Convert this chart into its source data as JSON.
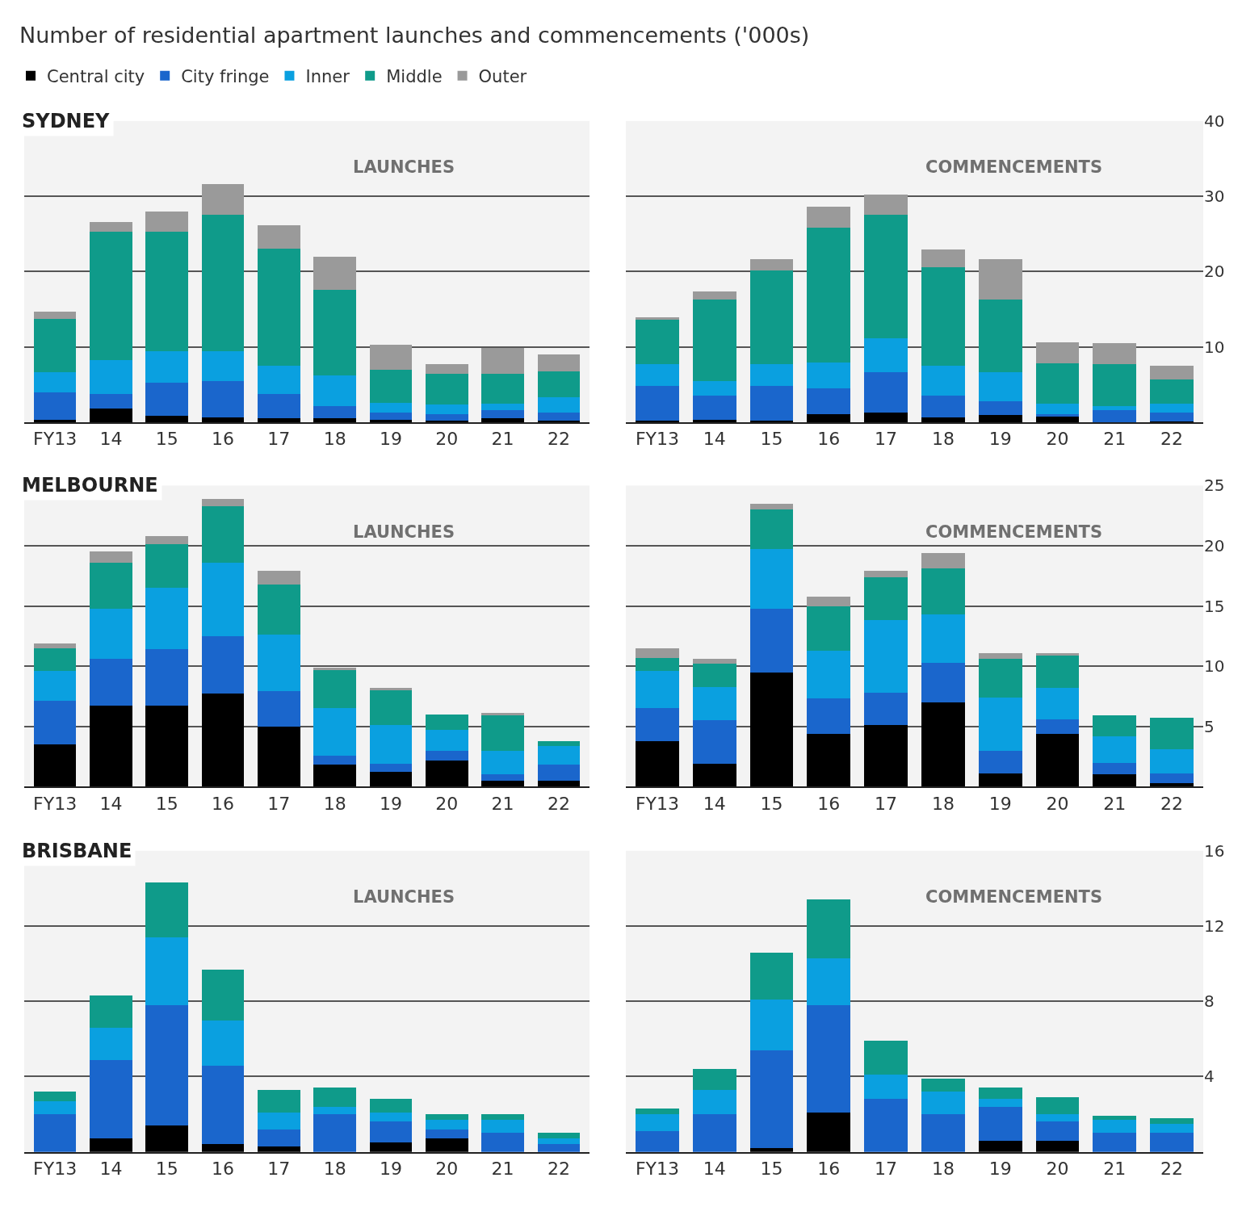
{
  "chart_data": [
    {
      "type": "bar",
      "stacked": true,
      "title": "LAUNCHES",
      "subtitle": "SYDNEY",
      "annotations": [
        "Number of residential apartment launches and commencements ('000s)"
      ],
      "legend": "top left",
      "grid": "y",
      "tick_labels": "x",
      "ylim": [
        0,
        40
      ],
      "yticks": [
        10,
        20,
        30,
        40
      ],
      "categories": [
        "FY13",
        "14",
        "15",
        "16",
        "17",
        "18",
        "19",
        "20",
        "21",
        "22"
      ],
      "series": [
        {
          "name": "Central city",
          "color": "#000000",
          "values": [
            0.3,
            1.8,
            0.8,
            0.6,
            0.5,
            0.5,
            0.3,
            0.2,
            0.5,
            0.2
          ]
        },
        {
          "name": "City fringe",
          "color": "#1a66cc",
          "values": [
            3.7,
            2.0,
            4.4,
            4.9,
            3.3,
            1.6,
            1.0,
            0.9,
            1.1,
            1.1
          ]
        },
        {
          "name": "Inner",
          "color": "#0aa0e0",
          "values": [
            2.6,
            4.4,
            4.2,
            3.9,
            3.7,
            4.1,
            1.3,
            1.2,
            0.9,
            2.0
          ]
        },
        {
          "name": "Middle",
          "color": "#0f9b8a",
          "values": [
            7.1,
            17.1,
            15.9,
            18.1,
            15.5,
            11.4,
            4.4,
            4.1,
            3.9,
            3.4
          ]
        },
        {
          "name": "Outer",
          "color": "#9a9a9a",
          "values": [
            1.0,
            1.3,
            2.7,
            4.1,
            3.2,
            4.4,
            3.3,
            1.3,
            3.5,
            2.3
          ]
        }
      ]
    },
    {
      "type": "bar",
      "stacked": true,
      "title": "COMMENCEMENTS",
      "grid": "y",
      "ylim": [
        0,
        40
      ],
      "yticks": [
        10,
        20,
        30,
        40
      ],
      "categories": [
        "FY13",
        "14",
        "15",
        "16",
        "17",
        "18",
        "19",
        "20",
        "21",
        "22"
      ],
      "series": [
        {
          "color": "#000000",
          "values": [
            0.2,
            0.3,
            0.2,
            1.1,
            1.3,
            0.6,
            1.0,
            0.7,
            0,
            0.1
          ]
        },
        {
          "color": "#1a66cc",
          "values": [
            4.6,
            3.2,
            4.6,
            3.4,
            5.3,
            2.9,
            1.8,
            0.4,
            1.6,
            1.2
          ]
        },
        {
          "color": "#0aa0e0",
          "values": [
            2.9,
            2.0,
            2.9,
            3.4,
            4.5,
            4.0,
            3.8,
            1.4,
            0.5,
            1.2
          ]
        },
        {
          "color": "#0f9b8a",
          "values": [
            6.0,
            10.8,
            12.4,
            17.9,
            16.5,
            13.1,
            9.7,
            5.3,
            5.6,
            3.2
          ]
        },
        {
          "color": "#9a9a9a",
          "values": [
            0.2,
            1.1,
            1.6,
            2.8,
            2.6,
            2.3,
            5.4,
            2.8,
            2.8,
            1.8
          ]
        }
      ]
    },
    {
      "type": "bar",
      "stacked": true,
      "title": "LAUNCHES",
      "subtitle": "MELBOURNE",
      "grid": "y",
      "tick_labels": "x",
      "ylim": [
        0,
        25
      ],
      "yticks": [
        5,
        10,
        15,
        20,
        25
      ],
      "categories": [
        "FY13",
        "14",
        "15",
        "16",
        "17",
        "18",
        "19",
        "20",
        "21",
        "22"
      ],
      "series": [
        {
          "color": "#000000",
          "values": [
            3.5,
            6.7,
            6.7,
            7.7,
            5.0,
            1.8,
            1.2,
            2.2,
            0.5,
            0.5
          ]
        },
        {
          "color": "#1a66cc",
          "values": [
            3.6,
            3.9,
            4.7,
            4.8,
            2.9,
            0.8,
            0.7,
            0.8,
            0.5,
            1.3
          ]
        },
        {
          "color": "#0aa0e0",
          "values": [
            2.5,
            4.2,
            5.1,
            6.1,
            4.7,
            3.9,
            3.2,
            1.7,
            2.0,
            1.6
          ]
        },
        {
          "color": "#0f9b8a",
          "values": [
            1.9,
            3.8,
            3.6,
            4.7,
            4.2,
            3.2,
            2.9,
            1.3,
            2.9,
            0.4
          ]
        },
        {
          "color": "#9a9a9a",
          "values": [
            0.4,
            0.9,
            0.7,
            0.6,
            1.1,
            0.2,
            0.2,
            0,
            0.2,
            0
          ]
        }
      ]
    },
    {
      "type": "bar",
      "stacked": true,
      "title": "COMMENCEMENTS",
      "grid": "y",
      "ylim": [
        0,
        25
      ],
      "yticks": [
        5,
        10,
        15,
        20,
        25
      ],
      "categories": [
        "FY13",
        "14",
        "15",
        "16",
        "17",
        "18",
        "19",
        "20",
        "21",
        "22"
      ],
      "series": [
        {
          "color": "#000000",
          "values": [
            3.8,
            1.9,
            9.5,
            4.4,
            5.1,
            7.0,
            1.1,
            4.4,
            1.0,
            0.3
          ]
        },
        {
          "color": "#1a66cc",
          "values": [
            2.7,
            3.6,
            5.3,
            2.9,
            2.7,
            3.3,
            1.9,
            1.2,
            1.0,
            0.8
          ]
        },
        {
          "color": "#0aa0e0",
          "values": [
            3.1,
            2.8,
            4.9,
            4.0,
            6.0,
            4.0,
            4.4,
            2.6,
            2.2,
            2.0
          ]
        },
        {
          "color": "#0f9b8a",
          "values": [
            1.1,
            1.9,
            3.3,
            3.7,
            3.6,
            3.8,
            3.2,
            2.7,
            1.7,
            2.6
          ]
        },
        {
          "color": "#9a9a9a",
          "values": [
            0.8,
            0.4,
            0.5,
            0.8,
            0.5,
            1.3,
            0.5,
            0.2,
            0,
            0
          ]
        }
      ]
    },
    {
      "type": "bar",
      "stacked": true,
      "title": "LAUNCHES",
      "subtitle": "BRISBANE",
      "grid": "y",
      "tick_labels": "x",
      "ylim": [
        0,
        16
      ],
      "yticks": [
        4,
        8,
        12,
        16
      ],
      "categories": [
        "FY13",
        "14",
        "15",
        "16",
        "17",
        "18",
        "19",
        "20",
        "21",
        "22"
      ],
      "series": [
        {
          "color": "#000000",
          "values": [
            0,
            0.7,
            1.4,
            0.4,
            0.3,
            0,
            0.5,
            0.7,
            0,
            0
          ]
        },
        {
          "color": "#1a66cc",
          "values": [
            2.0,
            4.2,
            6.4,
            4.2,
            0.9,
            2.0,
            1.1,
            0.5,
            1.0,
            0.4
          ]
        },
        {
          "color": "#0aa0e0",
          "values": [
            0.7,
            1.7,
            3.6,
            2.4,
            0.9,
            0.4,
            0.5,
            0.5,
            0.7,
            0.3
          ]
        },
        {
          "color": "#0f9b8a",
          "values": [
            0.5,
            1.7,
            2.9,
            2.7,
            1.2,
            1.0,
            0.7,
            0.3,
            0.3,
            0.3
          ]
        },
        {
          "color": "#9a9a9a",
          "values": [
            0,
            0,
            0,
            0,
            0,
            0,
            0,
            0,
            0,
            0
          ]
        }
      ]
    },
    {
      "type": "bar",
      "stacked": true,
      "title": "COMMENCEMENTS",
      "grid": "y",
      "ylim": [
        0,
        16
      ],
      "yticks": [
        4,
        8,
        12,
        16
      ],
      "categories": [
        "FY13",
        "14",
        "15",
        "16",
        "17",
        "18",
        "19",
        "20",
        "21",
        "22"
      ],
      "series": [
        {
          "color": "#000000",
          "values": [
            0,
            0,
            0.2,
            2.1,
            0,
            0,
            0.6,
            0.6,
            0,
            0
          ]
        },
        {
          "color": "#1a66cc",
          "values": [
            1.1,
            2.0,
            5.2,
            5.7,
            2.8,
            2.0,
            1.8,
            1.0,
            1.0,
            1.0
          ]
        },
        {
          "color": "#0aa0e0",
          "values": [
            0.9,
            1.3,
            2.7,
            2.5,
            1.3,
            1.2,
            0.4,
            0.4,
            0.7,
            0.5
          ]
        },
        {
          "color": "#0f9b8a",
          "values": [
            0.3,
            1.1,
            2.5,
            3.1,
            1.8,
            0.7,
            0.6,
            0.9,
            0.2,
            0.3
          ]
        },
        {
          "color": "#9a9a9a",
          "values": [
            0,
            0,
            0,
            0,
            0,
            0,
            0,
            0,
            0,
            0
          ]
        }
      ]
    }
  ]
}
